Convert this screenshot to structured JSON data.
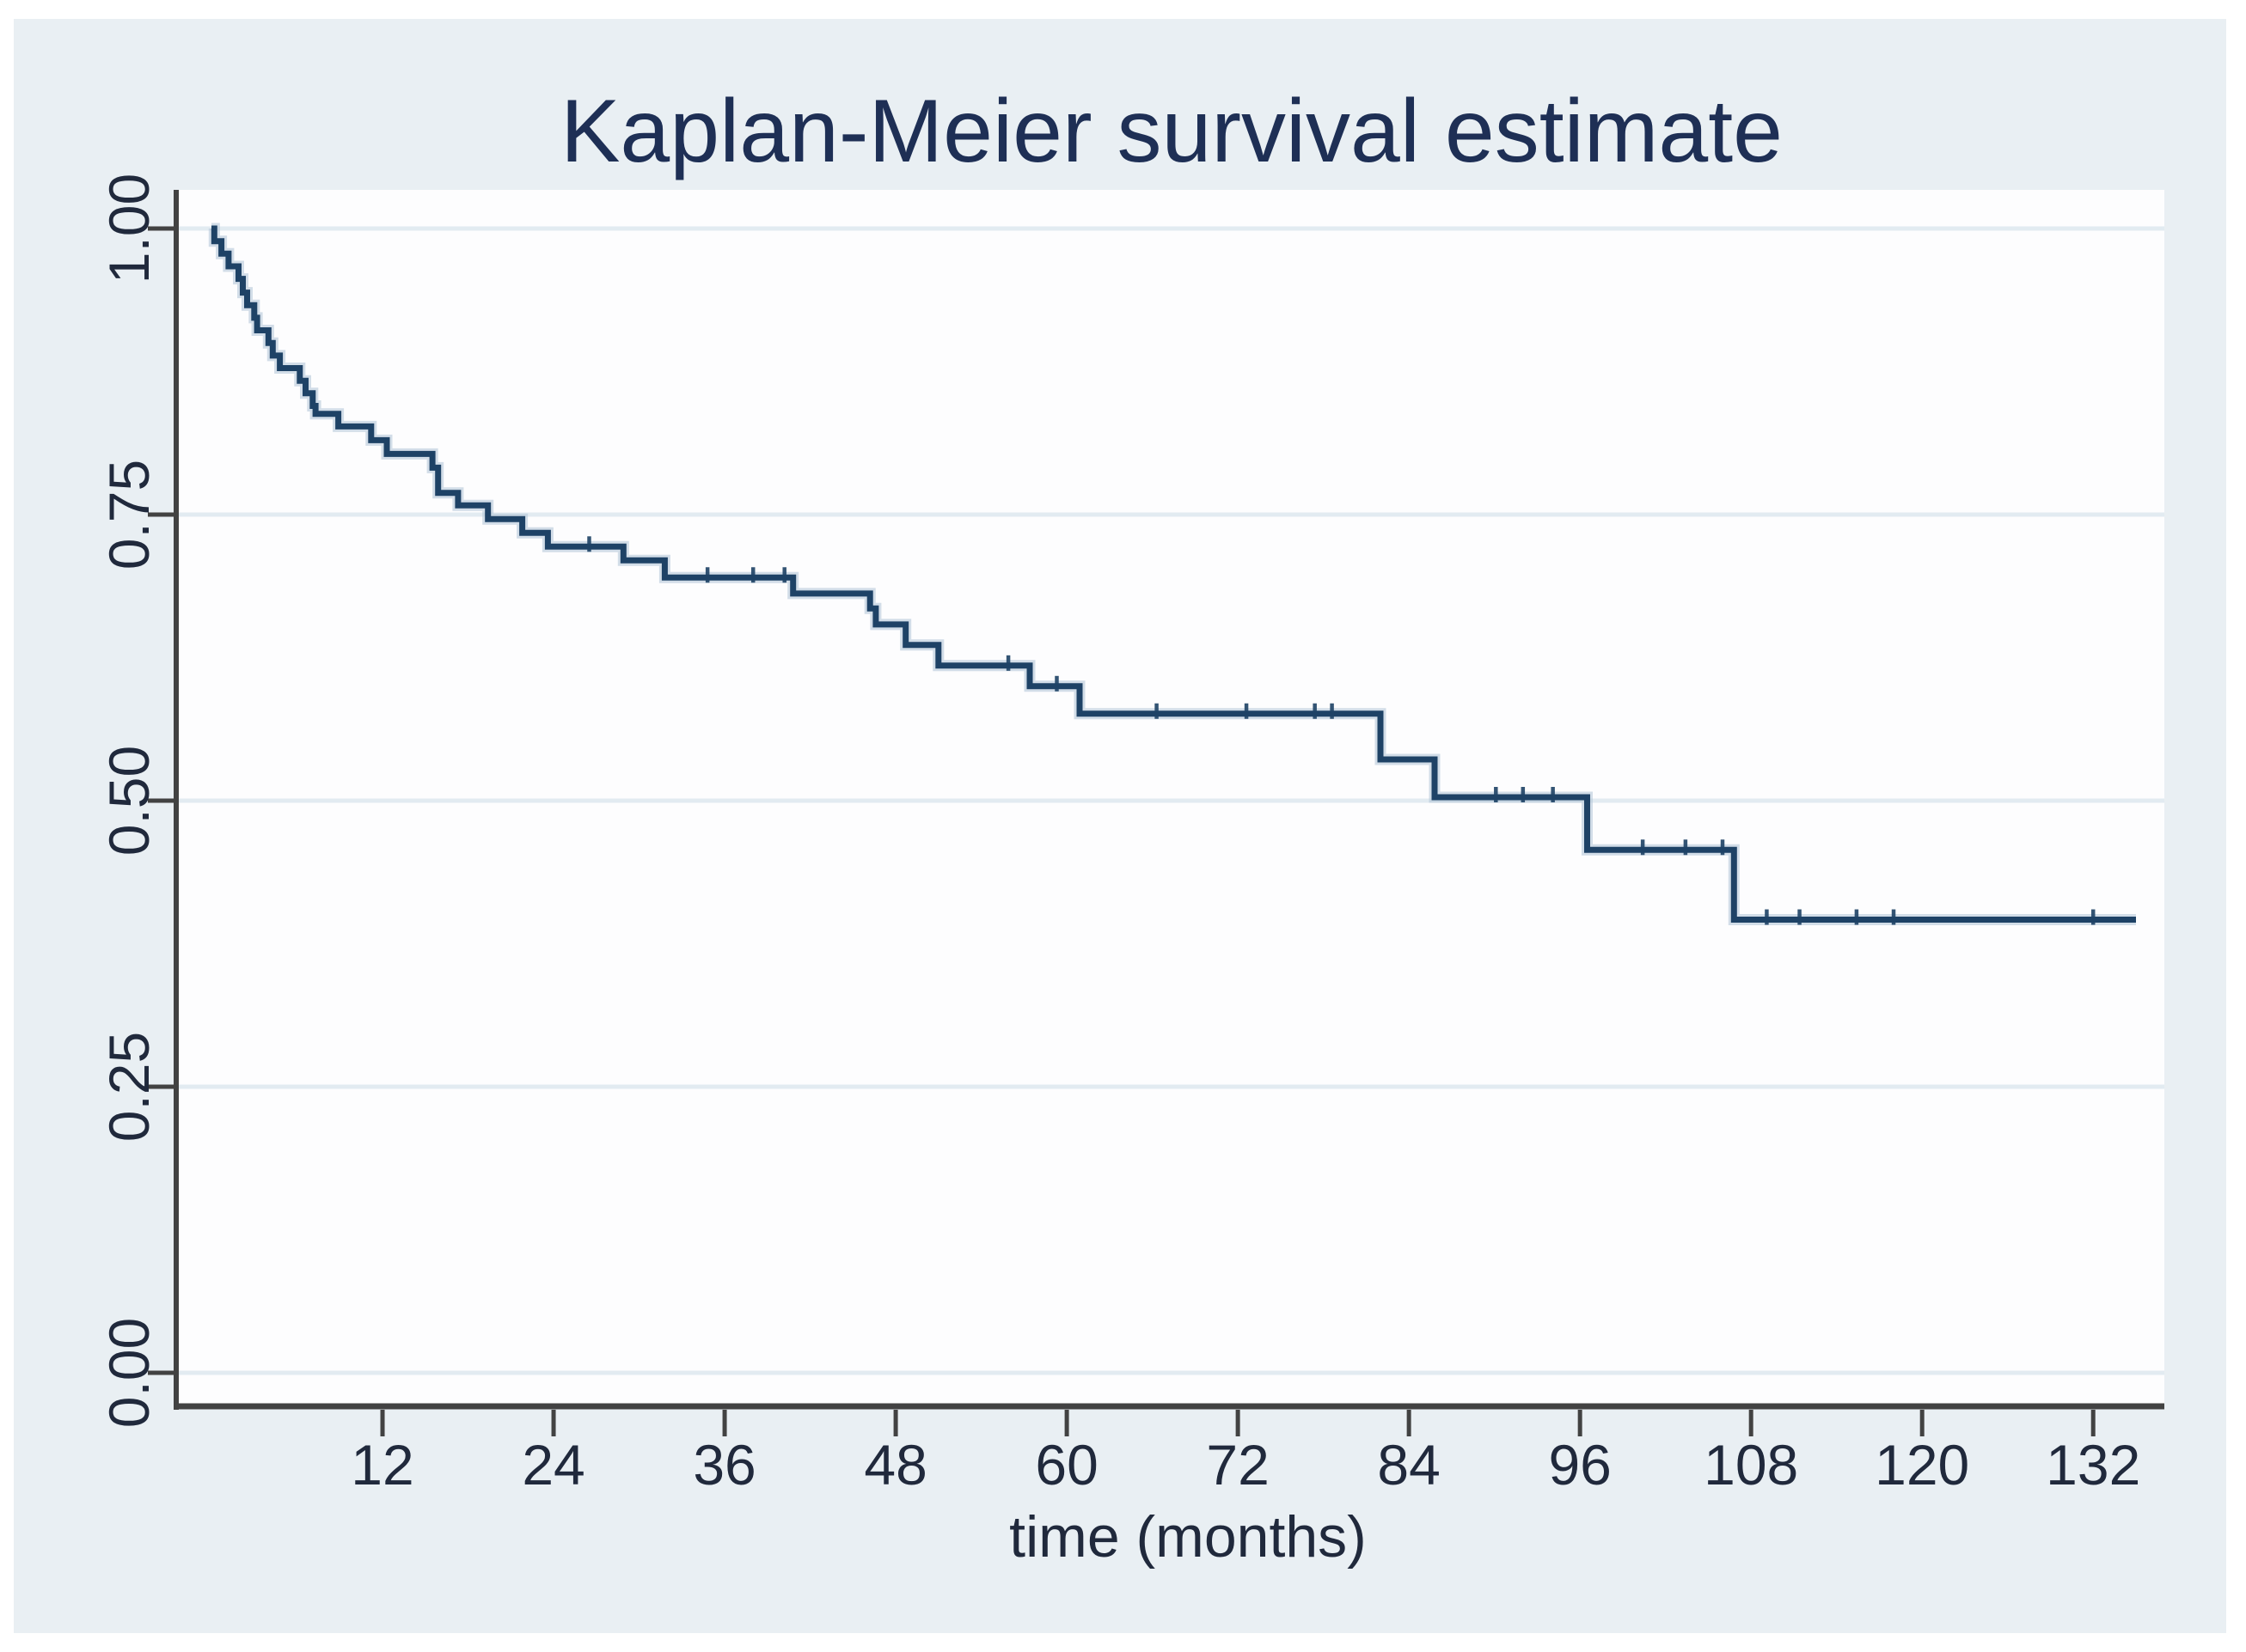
{
  "figure": {
    "title": "Kaplan-Meier survival estimate",
    "x_axis_label": "time (months)",
    "colors": {
      "page_background": "#ffffff",
      "panel_background": "#e9eff3",
      "plot_background": "#fdfdfe",
      "gridline": "#e2ebf1",
      "axis_line": "#424242",
      "tick_text": "#20293c",
      "title_text": "#1e2f55",
      "curve": "#1e4266",
      "curve_halo": "#aec3d5"
    }
  },
  "chart_data": {
    "type": "line",
    "subtype": "kaplan-meier-step",
    "title": "Kaplan-Meier survival estimate",
    "xlabel": "time (months)",
    "ylabel": "",
    "xlim": [
      0,
      137
    ],
    "ylim": [
      0,
      1.0
    ],
    "grid": "horizontal",
    "legend": "none",
    "x_axis": {
      "ticks": [
        12,
        24,
        36,
        48,
        60,
        72,
        84,
        96,
        108,
        120,
        132
      ],
      "tick_labels": [
        "12",
        "24",
        "36",
        "48",
        "60",
        "72",
        "84",
        "96",
        "108",
        "120",
        "132"
      ]
    },
    "y_axis": {
      "ticks": [
        {
          "label": "1.00",
          "value": 1.0
        },
        {
          "label": "0.75",
          "value": 0.75
        },
        {
          "label": "0.50",
          "value": 0.5
        },
        {
          "label": "0.25",
          "value": 0.25
        },
        {
          "label": "0.00",
          "value": 0.0
        }
      ]
    },
    "series": [
      {
        "name": "survival estimate",
        "style": "step",
        "points": [
          [
            0.0,
            1.0
          ],
          [
            0.2,
            0.989
          ],
          [
            0.7,
            0.978
          ],
          [
            1.2,
            0.967
          ],
          [
            1.9,
            0.956
          ],
          [
            2.2,
            0.944
          ],
          [
            2.5,
            0.933
          ],
          [
            3.0,
            0.922
          ],
          [
            3.2,
            0.911
          ],
          [
            4.0,
            0.9
          ],
          [
            4.3,
            0.889
          ],
          [
            4.8,
            0.878
          ],
          [
            6.2,
            0.867
          ],
          [
            6.6,
            0.856
          ],
          [
            7.1,
            0.845
          ],
          [
            7.3,
            0.838
          ],
          [
            8.9,
            0.827
          ],
          [
            11.2,
            0.815
          ],
          [
            12.3,
            0.803
          ],
          [
            15.5,
            0.791
          ],
          [
            15.9,
            0.769
          ],
          [
            17.3,
            0.758
          ],
          [
            19.4,
            0.746
          ],
          [
            21.8,
            0.734
          ],
          [
            23.6,
            0.722
          ],
          [
            28.9,
            0.71
          ],
          [
            31.8,
            0.695
          ],
          [
            40.8,
            0.681
          ],
          [
            46.2,
            0.668
          ],
          [
            46.6,
            0.654
          ],
          [
            48.7,
            0.636
          ],
          [
            51.0,
            0.618
          ],
          [
            57.4,
            0.6
          ],
          [
            60.9,
            0.576
          ],
          [
            82.0,
            0.536
          ],
          [
            85.8,
            0.503
          ],
          [
            96.5,
            0.457
          ],
          [
            106.8,
            0.396
          ],
          [
            135.0,
            0.396
          ]
        ],
        "censor_marks": [
          [
            26.5,
            0.722
          ],
          [
            34.8,
            0.695
          ],
          [
            38.0,
            0.695
          ],
          [
            40.2,
            0.695
          ],
          [
            55.9,
            0.618
          ],
          [
            59.3,
            0.6
          ],
          [
            66.3,
            0.576
          ],
          [
            72.6,
            0.576
          ],
          [
            77.4,
            0.576
          ],
          [
            78.6,
            0.576
          ],
          [
            90.1,
            0.503
          ],
          [
            92.0,
            0.503
          ],
          [
            94.1,
            0.503
          ],
          [
            100.4,
            0.457
          ],
          [
            103.4,
            0.457
          ],
          [
            106.0,
            0.457
          ],
          [
            109.1,
            0.396
          ],
          [
            111.4,
            0.396
          ],
          [
            115.4,
            0.396
          ],
          [
            118.0,
            0.396
          ],
          [
            132.0,
            0.396
          ]
        ]
      }
    ]
  }
}
